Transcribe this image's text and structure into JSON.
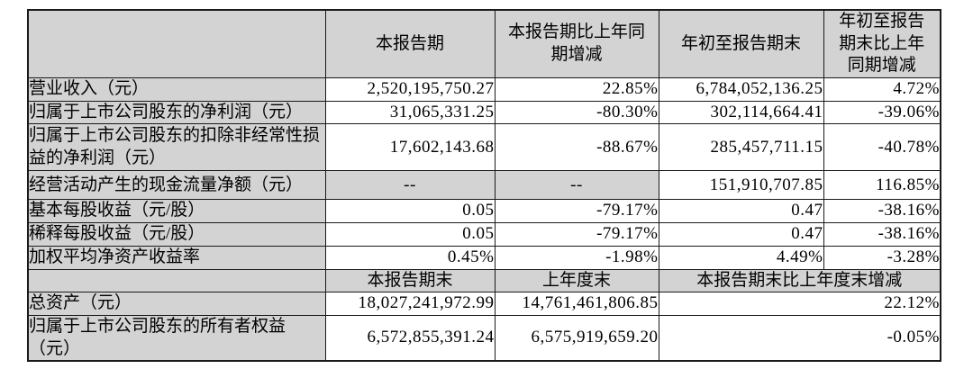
{
  "table": {
    "header": {
      "col1": "",
      "col2": "本报告期",
      "col3": "本报告期比上年同\n期增减",
      "col4": "年初至报告期末",
      "col5": "年初至报告\n期末比上年\n同期增减"
    },
    "rows": [
      {
        "label": "营业收入（元）",
        "values": [
          "2,520,195,750.27",
          "22.85%",
          "6,784,052,136.25",
          "4.72%"
        ]
      },
      {
        "label": "归属于上市公司股东的净利润（元）",
        "values": [
          "31,065,331.25",
          "-80.30%",
          "302,114,664.41",
          "-39.06%"
        ]
      },
      {
        "label": "归属于上市公司股东的扣除非经常性损益的净利润（元）",
        "values": [
          "17,602,143.68",
          "-88.67%",
          "285,457,711.15",
          "-40.78%"
        ]
      },
      {
        "label": "经营活动产生的现金流量净额（元）",
        "values": [
          "--",
          "--",
          "151,910,707.85",
          "116.85%"
        ]
      },
      {
        "label": "基本每股收益（元/股）",
        "values": [
          "0.05",
          "-79.17%",
          "0.47",
          "-38.16%"
        ]
      },
      {
        "label": "稀释每股收益（元/股）",
        "values": [
          "0.05",
          "-79.17%",
          "0.47",
          "-38.16%"
        ]
      },
      {
        "label": "加权平均净资产收益率",
        "values": [
          "0.45%",
          "-1.98%",
          "4.49%",
          "-3.28%"
        ]
      }
    ],
    "subheader": {
      "col1": "",
      "col2": "本报告期末",
      "col3": "上年度末",
      "col45": "本报告期末比上年度末增减"
    },
    "bottom_rows": [
      {
        "label": "总资产（元）",
        "values": [
          "18,027,241,972.99",
          "14,761,461,806.85",
          "22.12%"
        ]
      },
      {
        "label": "归属于上市公司股东的所有者权益（元）",
        "values": [
          "6,572,855,391.24",
          "6,575,919,659.20",
          "-0.05%"
        ]
      }
    ],
    "colors": {
      "cell_gray": "#d3d3d3",
      "border": "#1a1a1a",
      "background": "#ffffff"
    }
  }
}
